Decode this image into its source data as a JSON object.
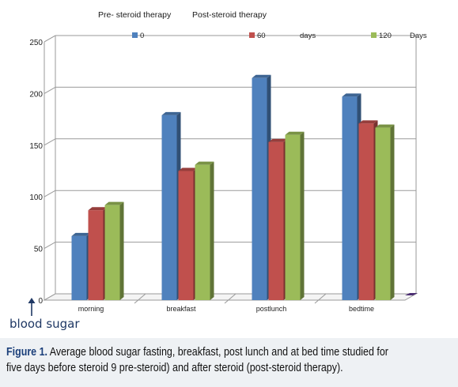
{
  "chart_data": {
    "type": "bar",
    "categories": [
      "morning",
      "breakfast",
      "postlunch",
      "bedtime"
    ],
    "series": [
      {
        "name": "0",
        "color": "#4f81bd",
        "values": [
          62,
          179,
          215,
          197
        ]
      },
      {
        "name": "60",
        "color": "#c0504d",
        "values": [
          87,
          125,
          153,
          171
        ]
      },
      {
        "name": "120",
        "color": "#9bbb59",
        "values": [
          92,
          131,
          160,
          167
        ]
      }
    ],
    "legend_suffixes": [
      "",
      "days",
      "Days"
    ],
    "header_labels": [
      "Pre- steroid therapy",
      "Post-steroid therapy"
    ],
    "ylim": [
      0,
      250
    ],
    "yticks": [
      "0",
      "50",
      "100",
      "150",
      "200",
      "250"
    ],
    "grid": true,
    "legend_position": "top"
  },
  "axis_note": "blood sugar",
  "caption": {
    "label": "Figure 1.",
    "text": "Average blood sugar fasting, breakfast, post lunch and at bed time  studied for five days  before steroid 9 pre-steroid) and after steroid (post-steroid therapy)."
  }
}
